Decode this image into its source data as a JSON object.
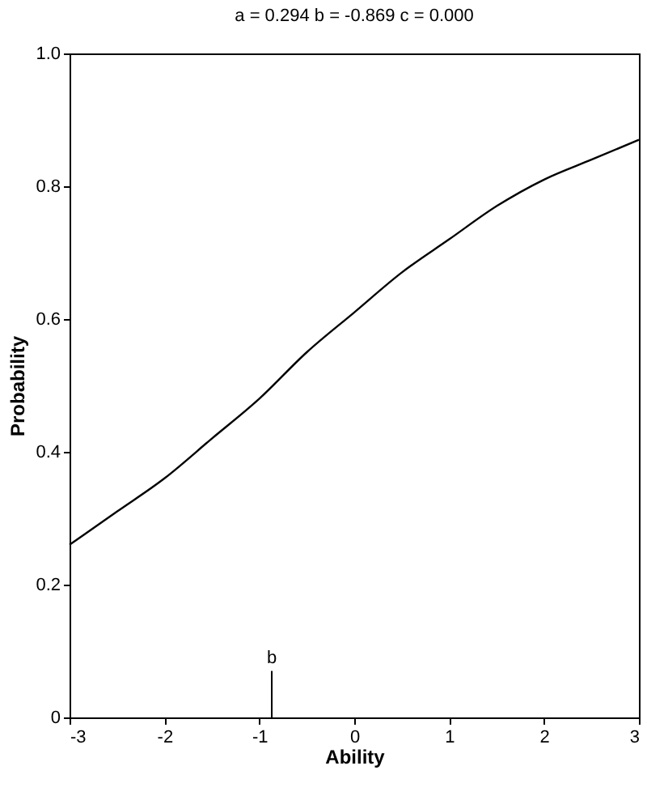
{
  "chart_data": {
    "type": "line",
    "title": "a =   0.294   b =   -0.869   c =   0.000",
    "xlabel": "Ability",
    "ylabel": "Probability",
    "x": [
      -3,
      -2.5,
      -2,
      -1.5,
      -1,
      -0.5,
      0,
      0.5,
      1,
      1.5,
      2,
      2.5,
      3
    ],
    "series": [
      {
        "color": "#000000",
        "values": [
          0.26,
          0.31,
          0.36,
          0.42,
          0.48,
          0.55,
          0.61,
          0.67,
          0.72,
          0.77,
          0.81,
          0.84,
          0.87
        ]
      }
    ],
    "xlim": [
      -3,
      3
    ],
    "xticks": [
      -3,
      -2,
      -1,
      0,
      1,
      2,
      3
    ],
    "ylim": [
      0,
      1
    ],
    "yticks": [
      0,
      0.2,
      0.4,
      0.6,
      0.8,
      {
        "value": 1,
        "label": "1.0"
      }
    ],
    "grid": false,
    "marker": "none",
    "line_style": "solid",
    "ref_lines": [
      {
        "axis": "x",
        "value": -0.869,
        "label": "b"
      }
    ]
  }
}
